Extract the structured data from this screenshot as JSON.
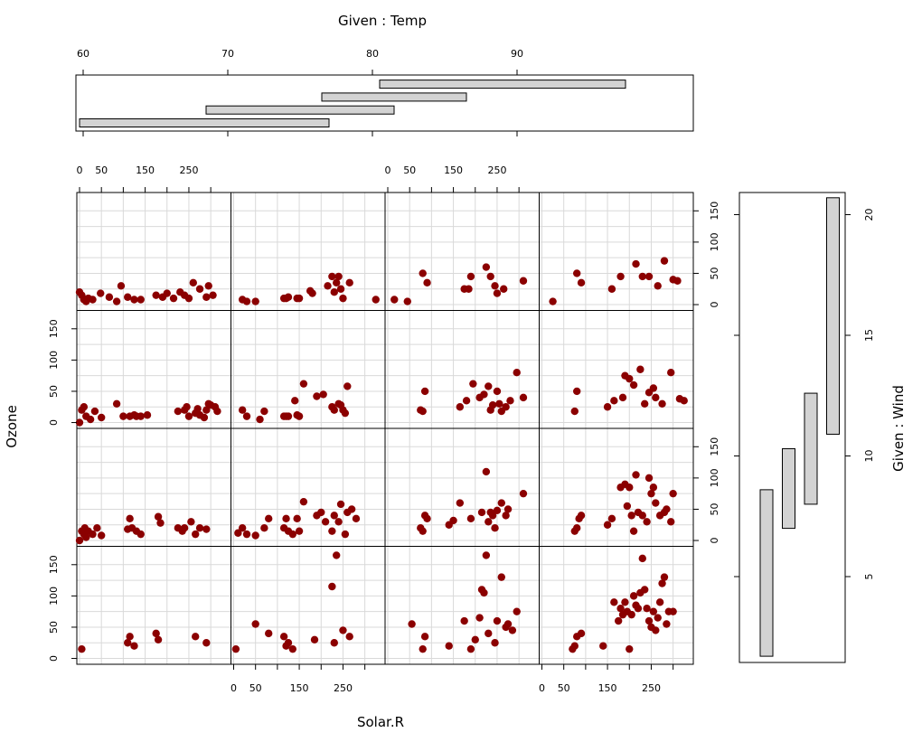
{
  "chart_data": {
    "type": "scatter",
    "layout": "coplot 4x4 panels (columns: Temp intervals, rows: Wind intervals, bottom row = lowest wind)",
    "xlabel": "Solar.R",
    "ylabel": "Ozone",
    "temp_given": {
      "label": "Given : Temp",
      "ticks": [
        60,
        70,
        80,
        90
      ],
      "intervals": [
        [
          56,
          77
        ],
        [
          68.5,
          81.5
        ],
        [
          76.5,
          86.5
        ],
        [
          80.5,
          97.5
        ]
      ]
    },
    "wind_given": {
      "label": "Given : Wind",
      "ticks": [
        5,
        10,
        15,
        20
      ],
      "intervals": [
        [
          1.7,
          8.6
        ],
        [
          7,
          10.3
        ],
        [
          8,
          12.6
        ],
        [
          10.9,
          20.7
        ]
      ]
    },
    "x_ticks": [
      0,
      50,
      150,
      250
    ],
    "y_ticks": [
      0,
      50,
      100,
      150
    ],
    "xlim": [
      0,
      340
    ],
    "ylim": [
      -5,
      175
    ],
    "panels": [
      {
        "row": 1,
        "col": 1,
        "x": [
          0,
          5,
          10,
          15,
          20,
          30,
          48,
          68,
          85,
          95,
          110,
          125,
          140,
          175,
          190,
          200,
          215,
          230,
          240,
          250,
          260,
          275,
          290,
          295,
          305
        ],
        "y": [
          20,
          15,
          8,
          5,
          10,
          8,
          18,
          12,
          5,
          30,
          12,
          8,
          8,
          15,
          12,
          18,
          10,
          20,
          15,
          10,
          35,
          25,
          12,
          30,
          15
        ]
      },
      {
        "row": 1,
        "col": 2,
        "x": [
          20,
          30,
          50,
          115,
          120,
          125,
          145,
          150,
          175,
          180,
          215,
          225,
          230,
          235,
          240,
          245,
          250,
          265,
          325
        ],
        "y": [
          8,
          5,
          5,
          10,
          10,
          12,
          10,
          10,
          22,
          18,
          30,
          45,
          20,
          35,
          45,
          25,
          10,
          35,
          8
        ]
      },
      {
        "row": 1,
        "col": 3,
        "x": [
          15,
          45,
          80,
          90,
          175,
          185,
          190,
          225,
          235,
          245,
          250,
          265,
          310
        ],
        "y": [
          8,
          5,
          50,
          35,
          25,
          25,
          45,
          60,
          45,
          30,
          18,
          25,
          38
        ]
      },
      {
        "row": 1,
        "col": 4,
        "x": [
          25,
          80,
          90,
          160,
          180,
          215,
          230,
          245,
          265,
          280,
          300,
          310
        ],
        "y": [
          5,
          50,
          35,
          25,
          45,
          65,
          45,
          45,
          30,
          70,
          40,
          38
        ]
      },
      {
        "row": 2,
        "col": 1,
        "x": [
          0,
          5,
          10,
          15,
          25,
          35,
          50,
          85,
          100,
          115,
          125,
          130,
          140,
          155,
          225,
          240,
          245,
          250,
          265,
          270,
          275,
          285,
          290,
          295,
          300,
          310,
          315
        ],
        "y": [
          0,
          20,
          25,
          10,
          5,
          18,
          8,
          30,
          10,
          10,
          12,
          10,
          10,
          12,
          18,
          20,
          25,
          10,
          15,
          22,
          12,
          8,
          20,
          30,
          28,
          25,
          18
        ]
      },
      {
        "row": 2,
        "col": 2,
        "x": [
          20,
          30,
          60,
          70,
          115,
          120,
          125,
          140,
          145,
          150,
          160,
          190,
          205,
          225,
          230,
          240,
          245,
          250,
          255,
          260
        ],
        "y": [
          20,
          10,
          5,
          18,
          10,
          10,
          10,
          35,
          12,
          10,
          62,
          42,
          45,
          25,
          20,
          30,
          28,
          20,
          15,
          58
        ]
      },
      {
        "row": 3,
        "col": 3,
        "x": [
          75,
          80,
          85,
          90,
          140,
          150,
          165,
          190,
          215,
          225,
          230,
          235,
          240,
          245,
          250,
          260,
          270,
          275,
          310
        ],
        "y": [
          20,
          15,
          40,
          35,
          25,
          32,
          60,
          35,
          45,
          110,
          30,
          45,
          40,
          20,
          48,
          60,
          40,
          50,
          75
        ]
      },
      {
        "row": 2,
        "col": 3,
        "x": [
          75,
          80,
          85,
          165,
          180,
          195,
          210,
          220,
          230,
          235,
          240,
          250,
          255,
          260,
          270,
          280,
          295,
          310
        ],
        "y": [
          20,
          18,
          50,
          25,
          35,
          62,
          40,
          45,
          58,
          20,
          28,
          50,
          30,
          18,
          25,
          35,
          80,
          40
        ]
      },
      {
        "row": 2,
        "col": 4,
        "x": [
          75,
          80,
          150,
          165,
          185,
          190,
          200,
          210,
          225,
          235,
          245,
          255,
          260,
          275,
          295,
          315,
          325
        ],
        "y": [
          18,
          50,
          25,
          35,
          40,
          75,
          70,
          60,
          85,
          30,
          48,
          55,
          40,
          30,
          80,
          38,
          35
        ]
      },
      {
        "row": 3,
        "col": 1,
        "x": [
          0,
          5,
          10,
          12,
          15,
          20,
          30,
          40,
          50,
          110,
          115,
          120,
          130,
          140,
          180,
          185,
          225,
          235,
          240,
          255,
          265,
          275,
          290
        ],
        "y": [
          0,
          15,
          10,
          20,
          5,
          15,
          10,
          20,
          8,
          18,
          35,
          20,
          15,
          10,
          38,
          28,
          20,
          15,
          20,
          30,
          10,
          20,
          18
        ]
      },
      {
        "row": 3,
        "col": 2,
        "x": [
          10,
          20,
          30,
          50,
          70,
          80,
          115,
          120,
          125,
          135,
          145,
          150,
          160,
          190,
          200,
          210,
          225,
          230,
          240,
          245,
          255,
          260,
          270,
          280
        ],
        "y": [
          12,
          20,
          10,
          8,
          20,
          35,
          20,
          35,
          15,
          10,
          35,
          15,
          62,
          40,
          45,
          30,
          15,
          40,
          30,
          58,
          10,
          45,
          50,
          35
        ]
      },
      {
        "row": 3,
        "col": 4,
        "x": [
          75,
          80,
          85,
          90,
          150,
          160,
          180,
          190,
          195,
          200,
          205,
          210,
          215,
          220,
          230,
          240,
          245,
          250,
          255,
          260,
          270,
          280,
          285,
          295,
          300
        ],
        "y": [
          15,
          20,
          35,
          40,
          25,
          35,
          85,
          90,
          55,
          85,
          40,
          15,
          105,
          45,
          40,
          30,
          100,
          75,
          85,
          60,
          40,
          45,
          50,
          30,
          75
        ]
      },
      {
        "row": 4,
        "col": 1,
        "x": [
          5,
          110,
          115,
          125,
          175,
          180,
          265,
          290
        ],
        "y": [
          15,
          25,
          35,
          20,
          40,
          30,
          35,
          25
        ]
      },
      {
        "row": 4,
        "col": 2,
        "x": [
          5,
          50,
          80,
          115,
          120,
          125,
          135,
          185,
          225,
          230,
          235,
          250,
          265
        ],
        "y": [
          15,
          55,
          40,
          35,
          20,
          25,
          15,
          30,
          115,
          25,
          165,
          45,
          35
        ]
      },
      {
        "row": 4,
        "col": 3,
        "x": [
          55,
          80,
          85,
          140,
          175,
          190,
          200,
          210,
          215,
          220,
          225,
          230,
          245,
          250,
          260,
          270,
          275,
          285,
          295
        ],
        "y": [
          55,
          15,
          35,
          20,
          60,
          15,
          30,
          65,
          110,
          105,
          165,
          40,
          25,
          60,
          130,
          50,
          55,
          45,
          75
        ]
      },
      {
        "row": 4,
        "col": 4,
        "x": [
          70,
          75,
          80,
          90,
          140,
          165,
          175,
          180,
          185,
          190,
          195,
          200,
          205,
          210,
          215,
          220,
          225,
          230,
          235,
          240,
          245,
          250,
          255,
          260,
          265,
          270,
          275,
          280,
          285,
          290,
          300
        ],
        "y": [
          15,
          20,
          35,
          40,
          20,
          90,
          60,
          80,
          70,
          90,
          75,
          15,
          70,
          100,
          85,
          80,
          105,
          160,
          110,
          80,
          60,
          50,
          75,
          45,
          65,
          90,
          120,
          130,
          55,
          75,
          75
        ]
      }
    ]
  }
}
